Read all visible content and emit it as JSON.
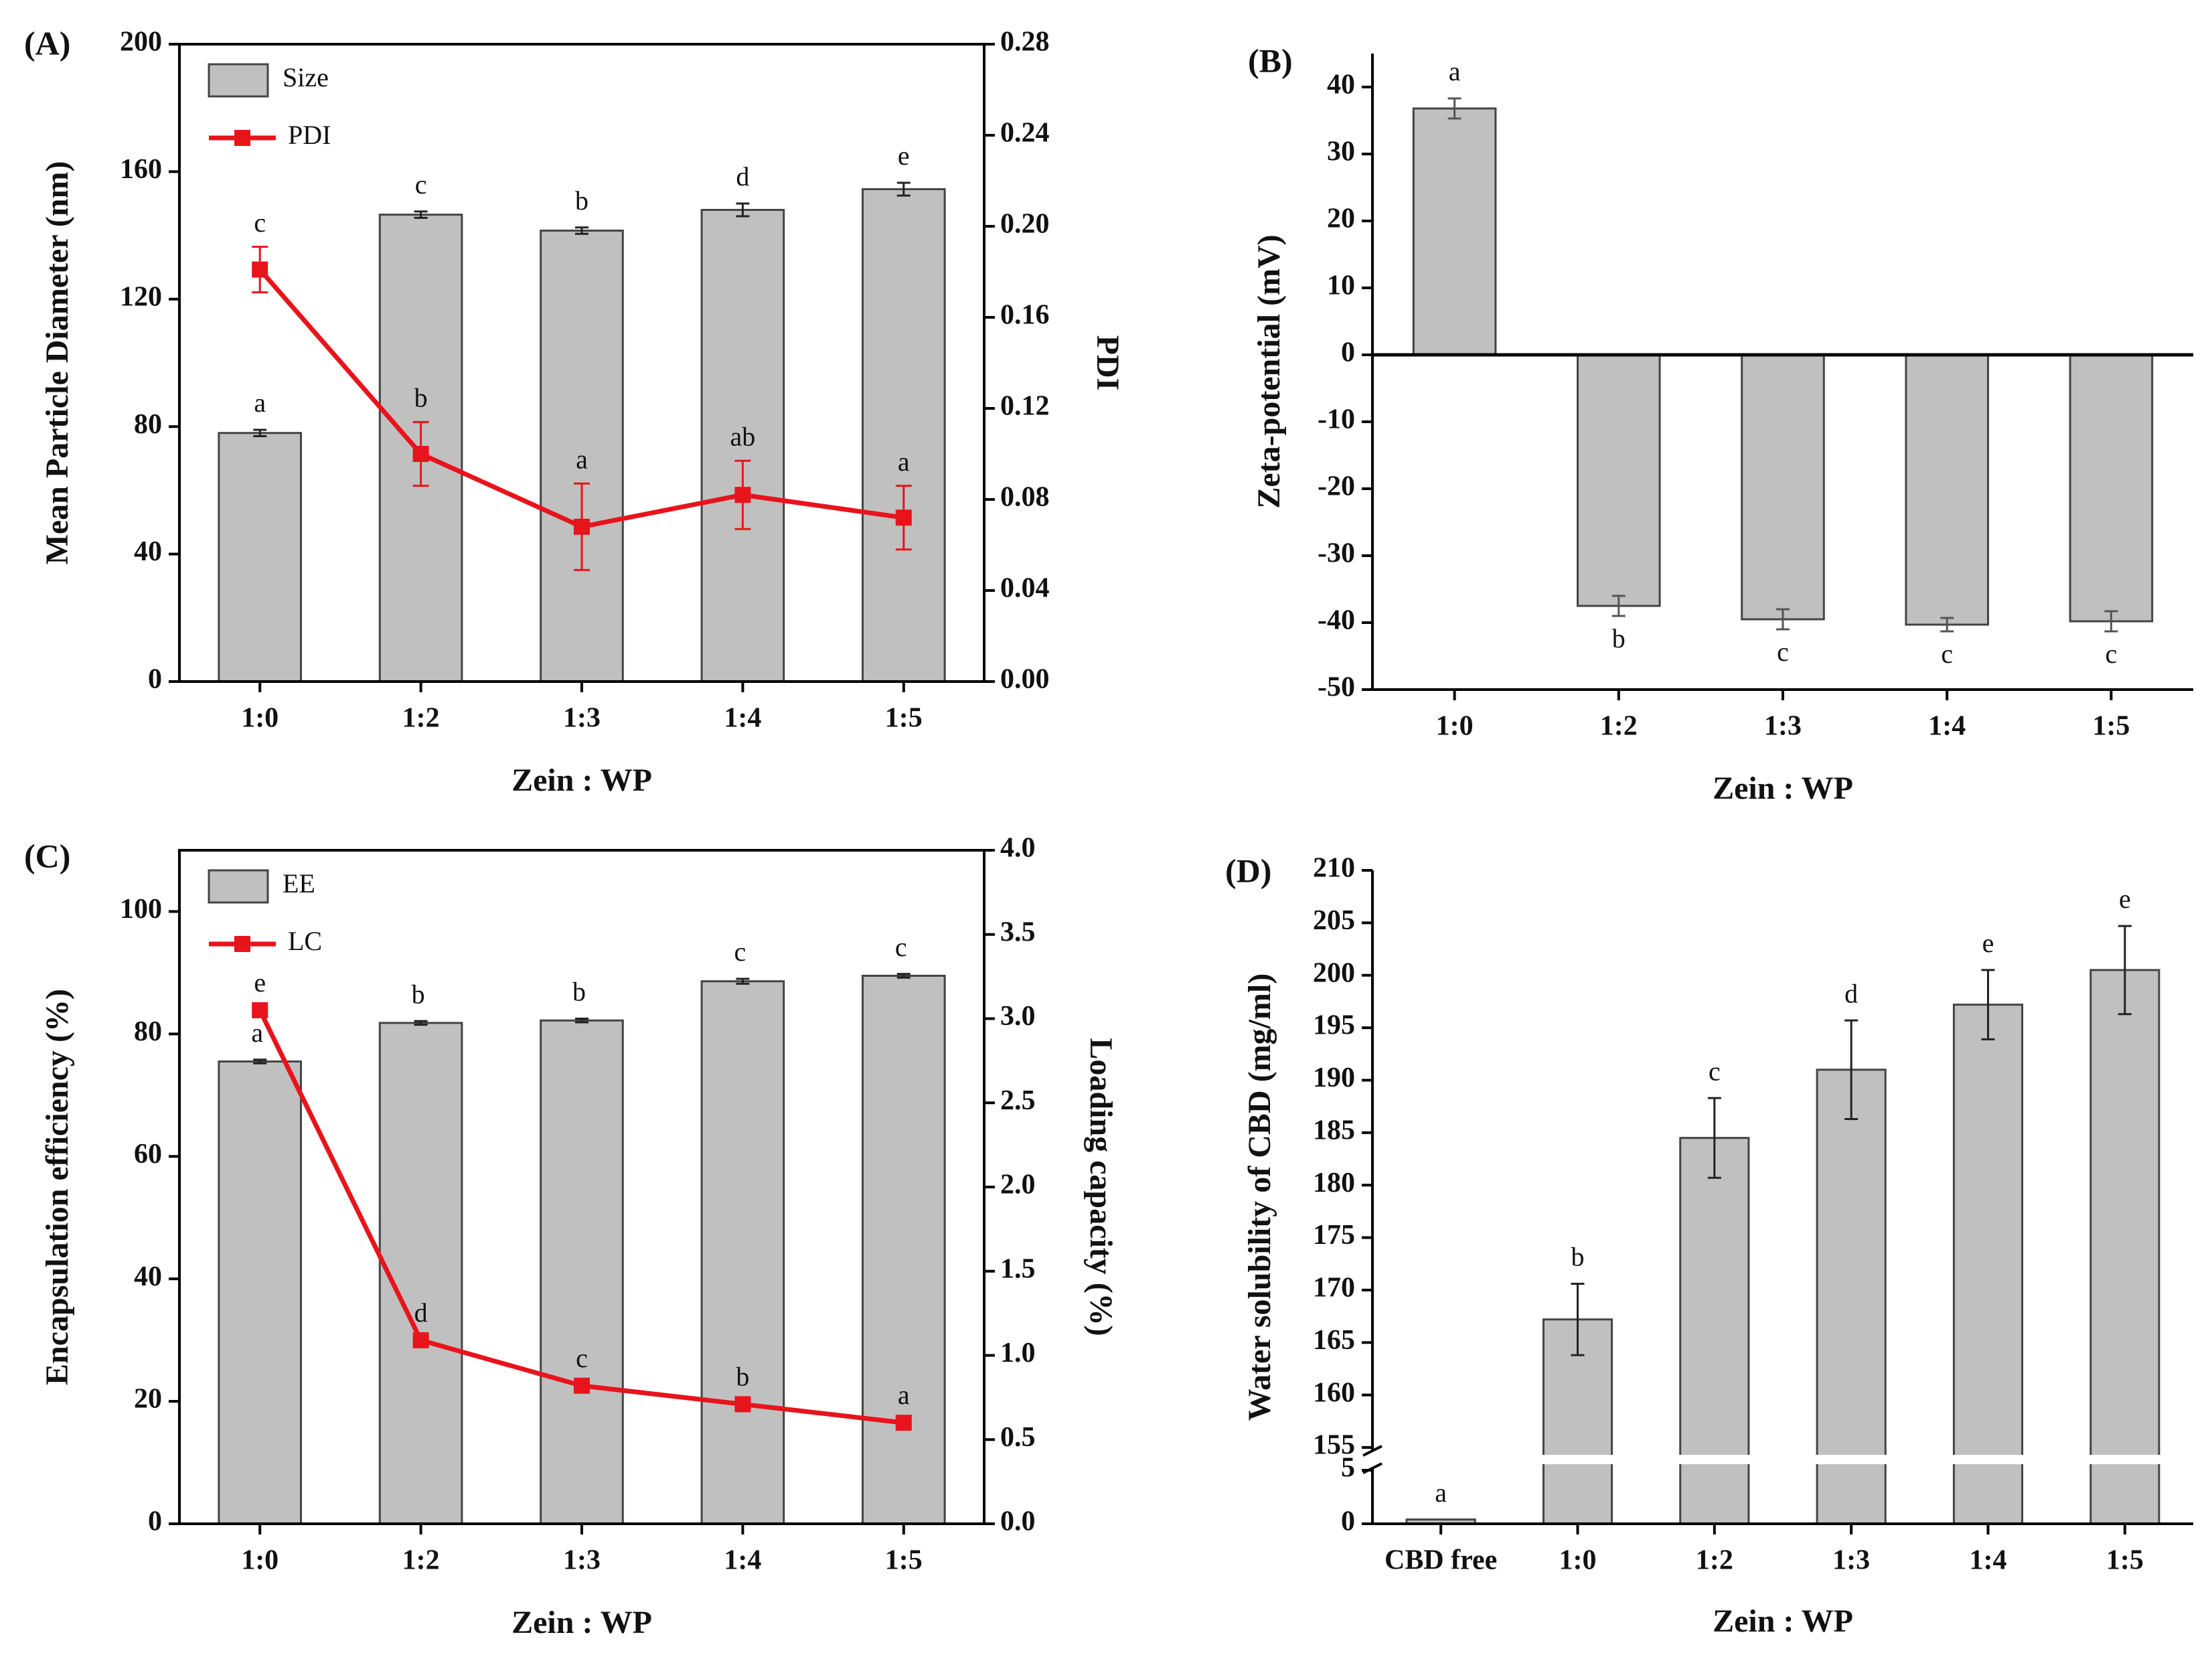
{
  "chart_data": [
    {
      "panel": "(A)",
      "type": "bar",
      "categories": [
        "1:0",
        "1:2",
        "1:3",
        "1:4",
        "1:5"
      ],
      "xlabel": "Zein : WP",
      "ylabel": "Mean Particle Diameter (nm)",
      "ylabel_right": "PDI",
      "ylim": [
        0,
        200
      ],
      "ylim_right": [
        0,
        0.28
      ],
      "yticks": [
        "0",
        "40",
        "80",
        "120",
        "160",
        "200"
      ],
      "yticks_right": [
        "0.00",
        "0.04",
        "0.08",
        "0.12",
        "0.16",
        "0.20",
        "0.24",
        "0.28"
      ],
      "legend": [
        "Size",
        "PDI"
      ],
      "series": [
        {
          "name": "Size",
          "kind": "bar",
          "axis": "left",
          "values": [
            78,
            146.5,
            141.5,
            148,
            154.5
          ],
          "errors": [
            1,
            1,
            1,
            2,
            2
          ],
          "letters": [
            "a",
            "c",
            "b",
            "d",
            "e"
          ]
        },
        {
          "name": "PDI",
          "kind": "line",
          "axis": "right",
          "values": [
            0.181,
            0.1,
            0.068,
            0.082,
            0.072
          ],
          "errors": [
            0.01,
            0.014,
            0.019,
            0.015,
            0.014
          ],
          "letters": [
            "c",
            "b",
            "a",
            "ab",
            "a"
          ]
        }
      ]
    },
    {
      "panel": "(B)",
      "type": "bar",
      "categories": [
        "1:0",
        "1:2",
        "1:3",
        "1:4",
        "1:5"
      ],
      "xlabel": "Zein : WP",
      "ylabel": "Zeta-potential (mV)",
      "ylim": [
        -50,
        45
      ],
      "yticks": [
        "-50",
        "-40",
        "-30",
        "-20",
        "-10",
        "0",
        "10",
        "20",
        "30",
        "40"
      ],
      "series": [
        {
          "name": "Zeta-potential",
          "kind": "bar",
          "values": [
            36.8,
            -37.5,
            -39.5,
            -40.3,
            -39.8
          ],
          "errors": [
            1.5,
            1.5,
            1.5,
            1,
            1.5
          ],
          "letters": [
            "a",
            "b",
            "c",
            "c",
            "c"
          ]
        }
      ]
    },
    {
      "panel": "(C)",
      "type": "bar",
      "categories": [
        "1:0",
        "1:2",
        "1:3",
        "1:4",
        "1:5"
      ],
      "xlabel": "Zein : WP",
      "ylabel": "Encapsulation efficiency (%)",
      "ylabel_right": "Loading capacity (%)",
      "ylim": [
        0,
        110
      ],
      "ylim_right": [
        0,
        4.0
      ],
      "yticks": [
        "0",
        "20",
        "40",
        "60",
        "80",
        "100"
      ],
      "yticks_right": [
        "0.0",
        "0.5",
        "1.0",
        "1.5",
        "2.0",
        "2.5",
        "3.0",
        "3.5",
        "4.0"
      ],
      "legend": [
        "EE",
        "LC"
      ],
      "series": [
        {
          "name": "EE",
          "kind": "bar",
          "axis": "left",
          "values": [
            75.5,
            81.8,
            82.2,
            88.6,
            89.5
          ],
          "errors": [
            0.3,
            0.3,
            0.3,
            0.4,
            0.3
          ],
          "letters": [
            "a",
            "b",
            "b",
            "c",
            "c"
          ]
        },
        {
          "name": "LC",
          "kind": "line",
          "axis": "right",
          "values": [
            3.05,
            1.09,
            0.82,
            0.71,
            0.6
          ],
          "errors": [
            0.02,
            0.02,
            0.02,
            0.02,
            0.02
          ],
          "letters": [
            "e",
            "d",
            "c",
            "b",
            "a"
          ]
        }
      ]
    },
    {
      "panel": "(D)",
      "type": "bar",
      "categories": [
        "CBD free",
        "1:0",
        "1:2",
        "1:3",
        "1:4",
        "1:5"
      ],
      "xlabel": "Zein : WP",
      "ylabel": "Water solubility of CBD (mg/ml)",
      "ylim_lower": [
        0,
        5
      ],
      "ylim_upper": [
        155,
        210
      ],
      "axis_break": "between 5 and 155",
      "yticks": [
        "0",
        "5",
        "155",
        "160",
        "165",
        "170",
        "175",
        "180",
        "185",
        "190",
        "195",
        "200",
        "205",
        "210"
      ],
      "series": [
        {
          "name": "Water solubility",
          "kind": "bar",
          "values": [
            0.4,
            167.2,
            184.5,
            191,
            197.2,
            200.5
          ],
          "errors": [
            0,
            3.4,
            3.8,
            4.7,
            3.3,
            4.2
          ],
          "letters": [
            "a",
            "b",
            "c",
            "d",
            "e",
            "e"
          ]
        }
      ]
    }
  ]
}
